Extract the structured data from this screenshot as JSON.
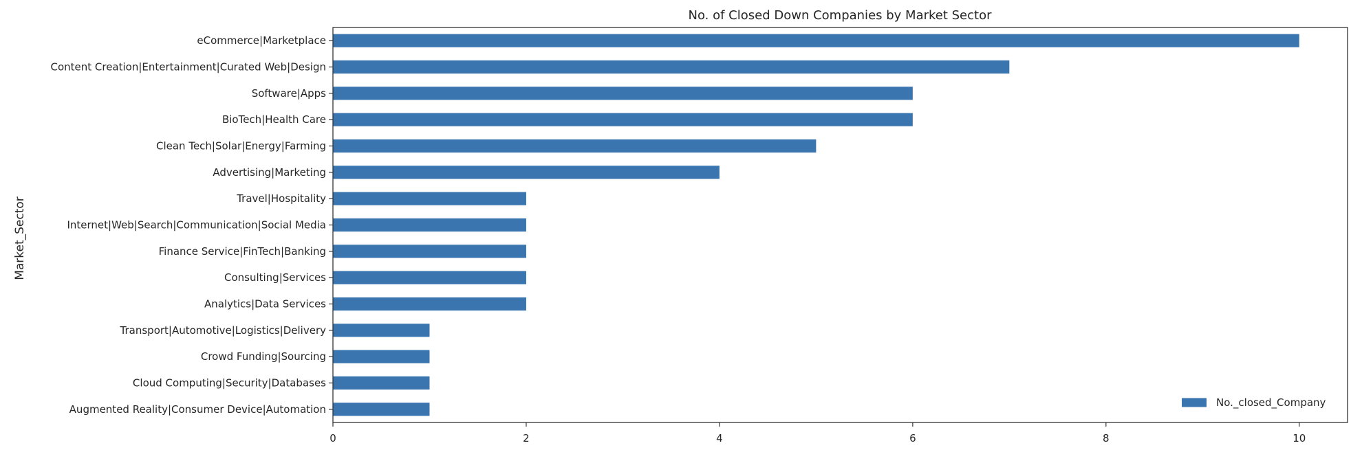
{
  "chart_data": {
    "type": "bar",
    "orientation": "horizontal",
    "title": "No. of Closed Down Companies by Market Sector",
    "xlabel": "",
    "ylabel": "Market_Sector",
    "categories": [
      "eCommerce|Marketplace",
      "Content Creation|Entertainment|Curated Web|Design",
      "Software|Apps",
      "BioTech|Health Care",
      "Clean Tech|Solar|Energy|Farming",
      "Advertising|Marketing",
      "Travel|Hospitality",
      "Internet|Web|Search|Communication|Social Media",
      "Finance Service|FinTech|Banking",
      "Consulting|Services",
      "Analytics|Data Services",
      "Transport|Automotive|Logistics|Delivery",
      "Crowd Funding|Sourcing",
      "Cloud Computing|Security|Databases",
      "Augmented Reality|Consumer Device|Automation"
    ],
    "series": [
      {
        "name": "No._closed_Company",
        "color": "#3a75b0",
        "values": [
          10,
          7,
          6,
          6,
          5,
          4,
          2,
          2,
          2,
          2,
          2,
          1,
          1,
          1,
          1
        ]
      }
    ],
    "xlim": [
      0,
      10.5
    ],
    "xticks": [
      0,
      2,
      4,
      6,
      8,
      10
    ],
    "grid": false,
    "legend_position": "bottom-right"
  }
}
